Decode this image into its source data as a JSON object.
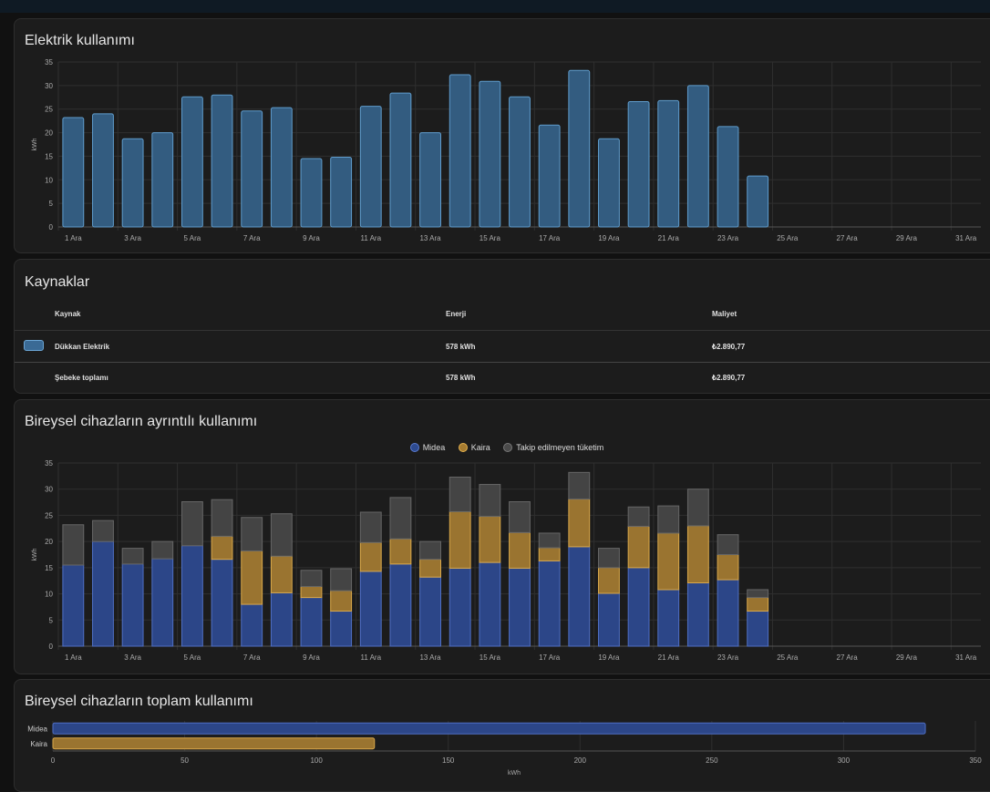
{
  "usage_card": {
    "title": "Elektrik kullanımı"
  },
  "sources_card": {
    "title": "Kaynaklar",
    "headers": {
      "source": "Kaynak",
      "energy": "Enerji",
      "cost": "Maliyet"
    },
    "rows": [
      {
        "name": "Dükkan Elektrik",
        "energy": "578 kWh",
        "cost": "₺2.890,77"
      }
    ],
    "total": {
      "name": "Şebeke toplamı",
      "energy": "578 kWh",
      "cost": "₺2.890,77"
    }
  },
  "detail_card": {
    "title": "Bireysel cihazların ayrıntılı kullanımı"
  },
  "total_card": {
    "title": "Bireysel cihazların toplam kullanımı"
  },
  "colors": {
    "grid": "#3a6a95",
    "midea": "#2d4a8f",
    "kaira": "#a57b30",
    "untracked": "#4a4a4a"
  },
  "chart_data": [
    {
      "type": "bar",
      "ylabel": "kWh",
      "ylim": [
        0,
        35
      ],
      "yticks": [
        0,
        5,
        10,
        15,
        20,
        25,
        30,
        35
      ],
      "x_tick_labels": [
        "1 Ara",
        "3 Ara",
        "5 Ara",
        "7 Ara",
        "9 Ara",
        "11 Ara",
        "13 Ara",
        "15 Ara",
        "17 Ara",
        "19 Ara",
        "21 Ara",
        "23 Ara",
        "25 Ara",
        "27 Ara",
        "29 Ara",
        "31 Ara"
      ],
      "days": 31,
      "values": [
        23.2,
        24.0,
        18.7,
        20.0,
        27.6,
        28.0,
        24.6,
        25.3,
        14.5,
        14.8,
        25.6,
        28.4,
        20.0,
        32.3,
        30.9,
        27.6,
        21.6,
        33.2,
        18.7,
        26.6,
        26.8,
        30.0,
        21.3,
        10.8
      ],
      "grid": true
    },
    {
      "type": "bar",
      "stacked": true,
      "ylabel": "kWh",
      "ylim": [
        0,
        35
      ],
      "yticks": [
        0,
        5,
        10,
        15,
        20,
        25,
        30,
        35
      ],
      "x_tick_labels": [
        "1 Ara",
        "3 Ara",
        "5 Ara",
        "7 Ara",
        "9 Ara",
        "11 Ara",
        "13 Ara",
        "15 Ara",
        "17 Ara",
        "19 Ara",
        "21 Ara",
        "23 Ara",
        "25 Ara",
        "27 Ara",
        "29 Ara",
        "31 Ara"
      ],
      "days": 31,
      "legend_position": "top-center",
      "series": [
        {
          "name": "Midea",
          "values": [
            15.5,
            20.0,
            15.7,
            16.7,
            19.2,
            16.6,
            8.0,
            10.2,
            9.3,
            6.7,
            14.3,
            15.7,
            13.2,
            14.9,
            16.0,
            14.9,
            16.3,
            19.0,
            10.1,
            15.0,
            10.8,
            12.1,
            12.7,
            6.7
          ]
        },
        {
          "name": "Kaira",
          "values": [
            0,
            0,
            0,
            0,
            0,
            4.4,
            10.2,
            7.0,
            2.1,
            3.9,
            5.5,
            4.8,
            3.4,
            10.8,
            8.8,
            6.8,
            2.5,
            9.1,
            4.9,
            7.9,
            10.8,
            10.9,
            4.8,
            2.6
          ]
        },
        {
          "name": "Takip edilmeyen tüketim",
          "values": [
            7.7,
            4.0,
            3.0,
            3.3,
            8.4,
            7.0,
            6.4,
            8.1,
            3.1,
            4.2,
            5.8,
            7.9,
            3.4,
            6.6,
            6.1,
            5.9,
            2.8,
            5.1,
            3.7,
            3.7,
            5.2,
            7.0,
            3.8,
            1.5
          ]
        }
      ],
      "grid": true
    },
    {
      "type": "bar",
      "orientation": "horizontal",
      "categories": [
        "Midea",
        "Kaira"
      ],
      "values": [
        331,
        122
      ],
      "xlabel": "kWh",
      "xlim": [
        0,
        350
      ],
      "xticks": [
        0,
        50,
        100,
        150,
        200,
        250,
        300,
        350
      ],
      "grid": true
    }
  ]
}
